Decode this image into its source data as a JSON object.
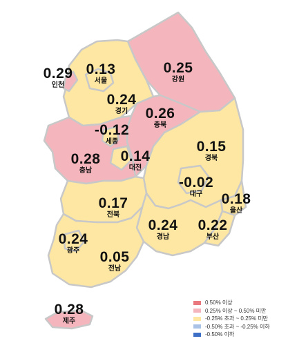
{
  "map": {
    "colors": {
      "outline": "#c8c8c8",
      "legend_swatches": [
        "#e9787f",
        "#f5b5bd",
        "#fde7a3",
        "#a9c2e6",
        "#3d6fc7"
      ]
    },
    "regions": [
      {
        "id": "incheon",
        "name": "인천",
        "value": "0.29",
        "class": 1
      },
      {
        "id": "seoul",
        "name": "서울",
        "value": "0.13",
        "class": 2
      },
      {
        "id": "gyeonggi",
        "name": "경기",
        "value": "0.24",
        "class": 2
      },
      {
        "id": "gangwon",
        "name": "강원",
        "value": "0.25",
        "class": 1
      },
      {
        "id": "chungbuk",
        "name": "충북",
        "value": "0.26",
        "class": 1
      },
      {
        "id": "sejong",
        "name": "세종",
        "value": "-0.12",
        "class": 2
      },
      {
        "id": "chungnam",
        "name": "충남",
        "value": "0.28",
        "class": 1
      },
      {
        "id": "daejeon",
        "name": "대전",
        "value": "0.14",
        "class": 2
      },
      {
        "id": "gyeongbuk",
        "name": "경북",
        "value": "0.15",
        "class": 2
      },
      {
        "id": "daegu",
        "name": "대구",
        "value": "-0.02",
        "class": 2
      },
      {
        "id": "jeonbuk",
        "name": "전북",
        "value": "0.17",
        "class": 2
      },
      {
        "id": "ulsan",
        "name": "울산",
        "value": "0.18",
        "class": 2
      },
      {
        "id": "gwangju",
        "name": "광주",
        "value": "0.24",
        "class": 2
      },
      {
        "id": "gyeongnam",
        "name": "경남",
        "value": "0.24",
        "class": 2
      },
      {
        "id": "busan",
        "name": "부산",
        "value": "0.22",
        "class": 2
      },
      {
        "id": "jeonnam",
        "name": "전남",
        "value": "0.05",
        "class": 2
      },
      {
        "id": "jeju",
        "name": "제주",
        "value": "0.28",
        "class": 1
      }
    ],
    "legend": [
      "0.50% 이상",
      "0.25% 이상 ~ 0.50% 미만",
      "-0.25% 초과 ~ 0.25% 미만",
      "-0.50% 초과 ~ -0.25% 이하",
      "-0.50% 이하"
    ]
  }
}
